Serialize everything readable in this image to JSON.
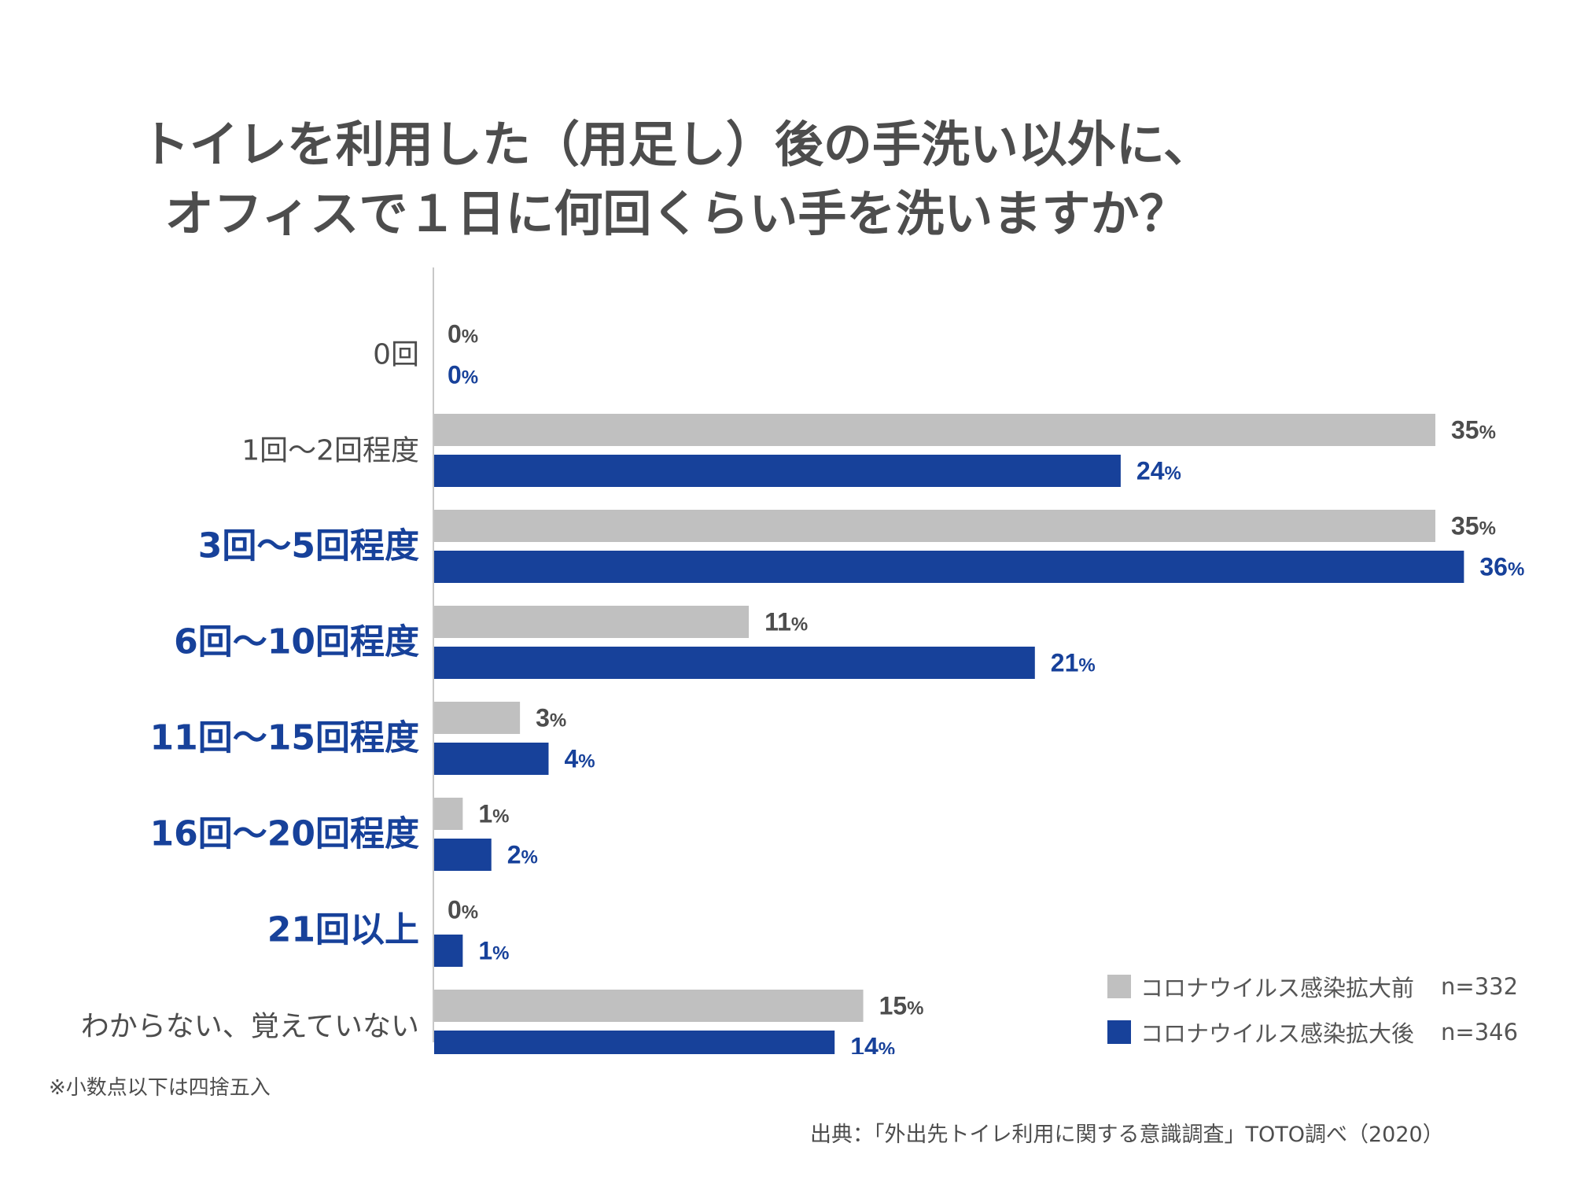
{
  "title_lines": [
    "トイレを利用した（用足し）後の手洗い以外に、",
    "オフィスで１日に何回くらい手を洗いますか？"
  ],
  "colors": {
    "before": "#c0c0c0",
    "after": "#17419a",
    "text_before": "#4d4d4d",
    "text_after": "#17419a"
  },
  "chart_data": {
    "type": "bar",
    "orientation": "horizontal",
    "title": "トイレを利用した（用足し）後の手洗い以外に、オフィスで１日に何回くらい手を洗いますか？",
    "categories": [
      "0回",
      "1回～2回程度",
      "3回～5回程度",
      "6回～10回程度",
      "11回～15回程度",
      "16回～20回程度",
      "21回以上",
      "わからない、覚えていない"
    ],
    "highlighted_categories": [
      false,
      false,
      true,
      true,
      true,
      true,
      true,
      false
    ],
    "series": [
      {
        "name": "コロナウイルス感染拡大前",
        "values": [
          0,
          35,
          35,
          11,
          3,
          1,
          0,
          15
        ]
      },
      {
        "name": "コロナウイルス感染拡大後",
        "values": [
          0,
          24,
          36,
          21,
          4,
          2,
          1,
          14
        ]
      }
    ],
    "value_suffix": "%",
    "xlim": [
      0,
      36
    ],
    "grid": false,
    "legend_position": "bottom-right"
  },
  "legend": {
    "items": [
      {
        "label": "コロナウイルス感染拡大前",
        "n": "n=332"
      },
      {
        "label": "コロナウイルス感染拡大後",
        "n": "n=346"
      }
    ]
  },
  "note": "※小数点以下は四捨五入",
  "source": "出典：「外出先トイレ利用に関する意識調査」TOTO調べ（2020）"
}
